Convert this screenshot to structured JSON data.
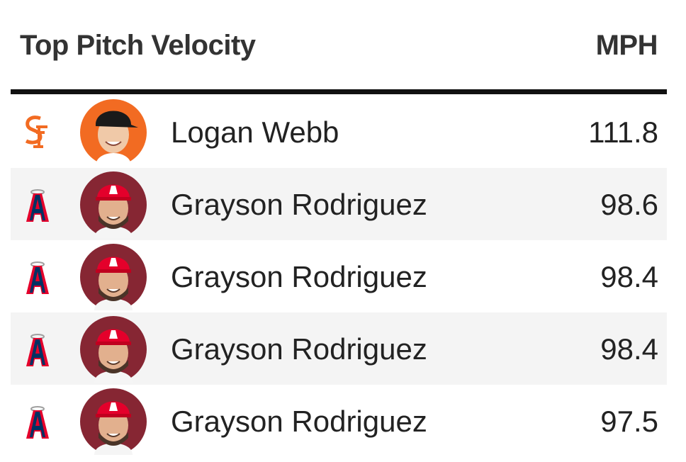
{
  "header": {
    "title": "Top Pitch Velocity",
    "unit": "MPH"
  },
  "rows": [
    {
      "name": "Logan Webb",
      "mph": 111.8
    },
    {
      "name": "Grayson Rodriguez",
      "mph": 98.6
    },
    {
      "name": "Grayson Rodriguez",
      "mph": 98.4
    },
    {
      "name": "Grayson Rodriguez",
      "mph": 98.4
    },
    {
      "name": "Grayson Rodriguez",
      "mph": 97.5
    }
  ]
}
